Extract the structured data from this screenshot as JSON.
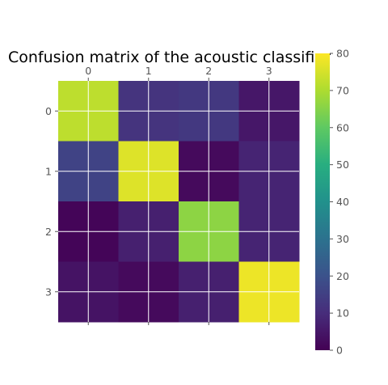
{
  "chart_data": {
    "type": "heatmap",
    "title": "Confusion matrix of the acoustic classifier",
    "xlabel": "",
    "ylabel": "",
    "x_categories": [
      "0",
      "1",
      "2",
      "3"
    ],
    "y_categories": [
      "0",
      "1",
      "2",
      "3"
    ],
    "x_tick_position": "top",
    "matrix": [
      [
        72,
        12,
        13,
        5
      ],
      [
        16,
        76,
        2,
        8
      ],
      [
        1,
        7,
        66,
        8
      ],
      [
        4,
        2,
        7,
        78
      ]
    ],
    "colorbar": {
      "min": 0,
      "max": 80,
      "ticks": [
        "0",
        "10",
        "20",
        "30",
        "40",
        "50",
        "60",
        "70",
        "80"
      ],
      "colormap": "viridis"
    },
    "grid": true,
    "grid_color": "#ffffff"
  }
}
